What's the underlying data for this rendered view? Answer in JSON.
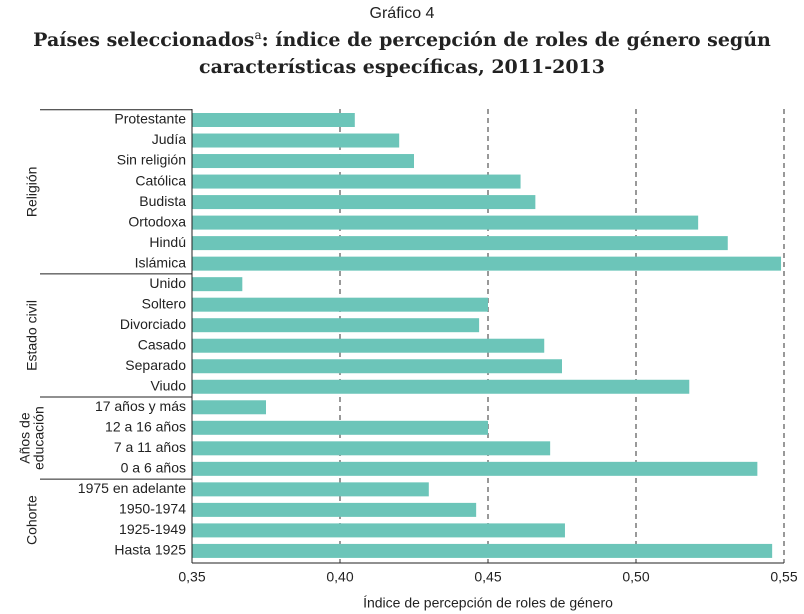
{
  "chart_data": {
    "type": "bar",
    "orientation": "horizontal",
    "label": "Gráfico 4",
    "title_main": "Países seleccionados",
    "title_superscript": "a",
    "title_rest": [
      ": índice de percepción de roles de género según",
      "características específicas, 2011-2013"
    ],
    "x_label": "Índice de percepción de roles de género",
    "color": "#6cc5b9",
    "xlim": [
      0.35,
      0.55
    ],
    "xticks": [
      {
        "value": 0.35,
        "label": "0,35"
      },
      {
        "value": 0.4,
        "label": "0,40"
      },
      {
        "value": 0.45,
        "label": "0,45"
      },
      {
        "value": 0.5,
        "label": "0,50"
      },
      {
        "value": 0.55,
        "label": "0,55"
      }
    ],
    "grid": true,
    "groups": [
      {
        "label": [
          "Religión"
        ],
        "categories": [
          "Protestante",
          "Judía",
          "Sin religión",
          "Católica",
          "Budista",
          "Ortodoxa",
          "Hindú",
          "Islámica"
        ],
        "values": [
          0.405,
          0.42,
          0.425,
          0.461,
          0.466,
          0.521,
          0.531,
          0.549
        ]
      },
      {
        "label": [
          "Estado civil"
        ],
        "categories": [
          "Unido",
          "Soltero",
          "Divorciado",
          "Casado",
          "Separado",
          "Viudo"
        ],
        "values": [
          0.367,
          0.45,
          0.447,
          0.469,
          0.475,
          0.518
        ]
      },
      {
        "label": [
          "Años de",
          "educación"
        ],
        "categories": [
          "17 años y más",
          "12 a 16 años",
          "7 a 11 años",
          "0 a 6 años"
        ],
        "values": [
          0.375,
          0.45,
          0.471,
          0.541
        ]
      },
      {
        "label": [
          "Cohorte"
        ],
        "categories": [
          "1975 en adelante",
          "1950-1974",
          "1925-1949",
          "Hasta 1925"
        ],
        "values": [
          0.43,
          0.446,
          0.476,
          0.546
        ]
      }
    ]
  }
}
